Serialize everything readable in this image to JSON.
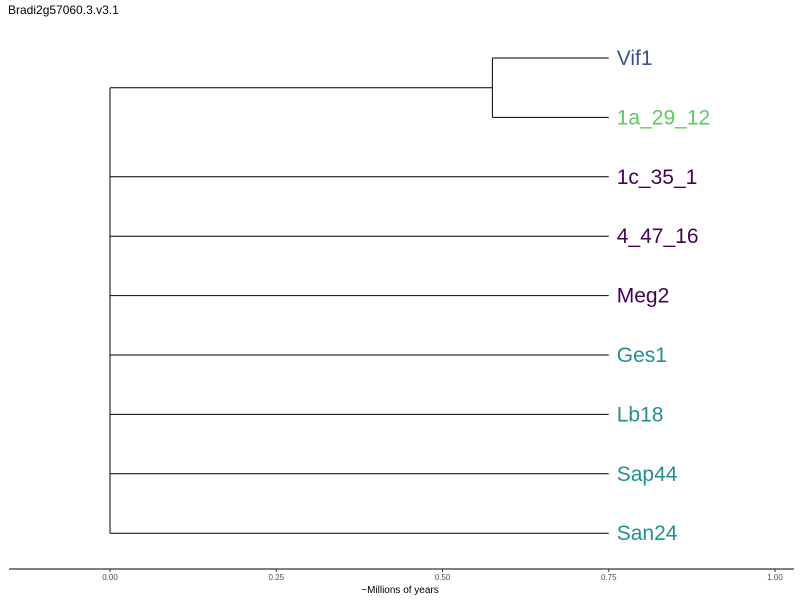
{
  "title": "Bradi2g57060.3.v3.1",
  "axis": {
    "label": "~Millions of years",
    "ticks": [
      {
        "value": 0.0,
        "label": "0.00"
      },
      {
        "value": 0.25,
        "label": "0.25"
      },
      {
        "value": 0.5,
        "label": "0.50"
      },
      {
        "value": 0.75,
        "label": "0.75"
      },
      {
        "value": 1.0,
        "label": "1.00"
      }
    ]
  },
  "chart_data": {
    "type": "phylogenetic-tree",
    "root_age": 0.0,
    "internal_nodes": [
      {
        "id": "clade-vif1-1a",
        "x": 0.575,
        "children": [
          "Vif1",
          "1a_29_12"
        ]
      }
    ],
    "tips": [
      {
        "name": "Vif1",
        "x": 0.75,
        "color": "#3b528b",
        "parent": "clade-vif1-1a"
      },
      {
        "name": "1a_29_12",
        "x": 0.75,
        "color": "#5ec962",
        "parent": "clade-vif1-1a"
      },
      {
        "name": "1c_35_1",
        "x": 0.75,
        "color": "#440154",
        "parent": "root"
      },
      {
        "name": "4_47_16",
        "x": 0.75,
        "color": "#440154",
        "parent": "root"
      },
      {
        "name": "Meg2",
        "x": 0.75,
        "color": "#440154",
        "parent": "root"
      },
      {
        "name": "Ges1",
        "x": 0.75,
        "color": "#21908d",
        "parent": "root"
      },
      {
        "name": "Lb18",
        "x": 0.75,
        "color": "#21908d",
        "parent": "root"
      },
      {
        "name": "Sap44",
        "x": 0.75,
        "color": "#21908d",
        "parent": "root"
      },
      {
        "name": "San24",
        "x": 0.75,
        "color": "#21908d",
        "parent": "root"
      }
    ],
    "xlim": [
      0.0,
      1.0
    ],
    "grid": false
  }
}
